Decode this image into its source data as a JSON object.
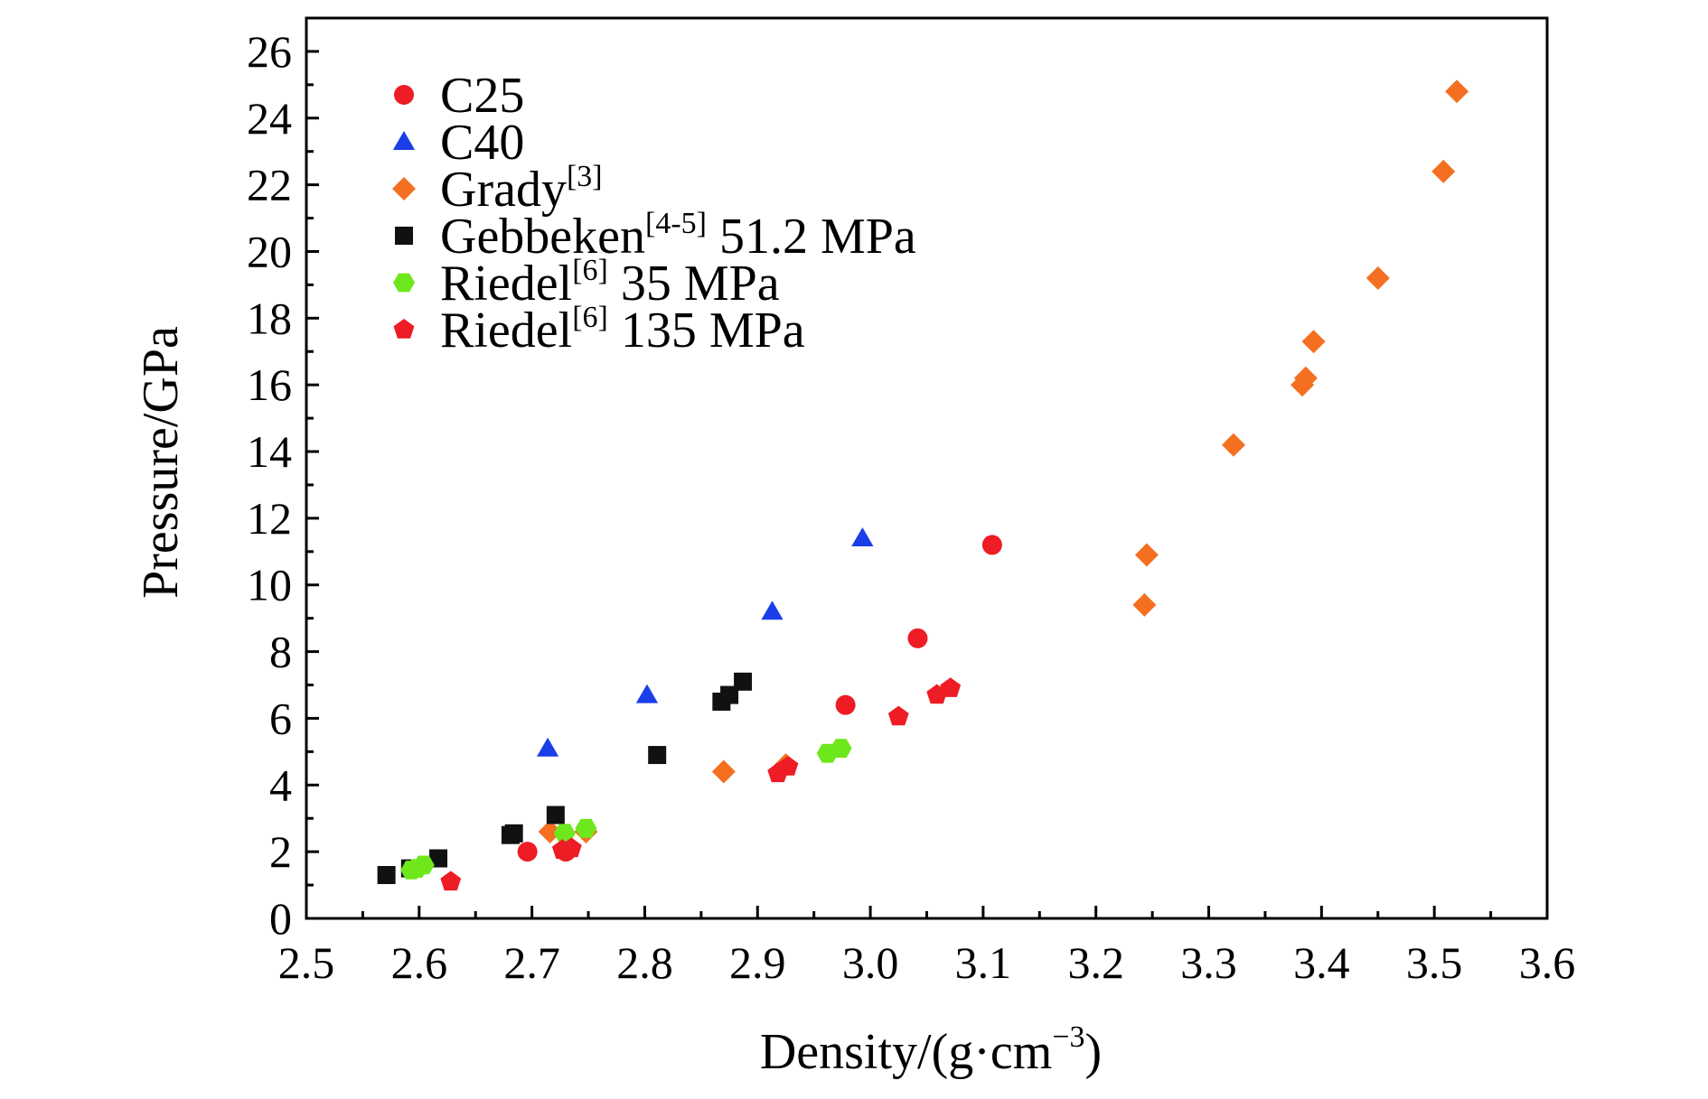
{
  "chart_data": {
    "type": "scatter",
    "title": "",
    "xlabel": "Density/(g·cm",
    "xlabel_sup": "−3",
    "xlabel_tail": ")",
    "ylabel": "Pressure/GPa",
    "xlim": [
      2.5,
      3.6
    ],
    "ylim": [
      0,
      27
    ],
    "xticks": [
      "2.5",
      "2.6",
      "2.7",
      "2.8",
      "2.9",
      "3.0",
      "3.1",
      "3.2",
      "3.3",
      "3.4",
      "3.5",
      "3.6"
    ],
    "yticks": [
      "0",
      "2",
      "4",
      "6",
      "8",
      "10",
      "12",
      "14",
      "16",
      "18",
      "20",
      "22",
      "24",
      "26"
    ],
    "grid": false,
    "legend_position": "top-left",
    "series": [
      {
        "name": "C25",
        "legend_main": "C25",
        "legend_sup": "",
        "legend_tail": "",
        "marker": "circle",
        "color": "#ee1c25",
        "points": [
          [
            2.696,
            2.0
          ],
          [
            2.73,
            2.0
          ],
          [
            2.978,
            6.4
          ],
          [
            3.042,
            8.4
          ],
          [
            3.108,
            11.2
          ]
        ]
      },
      {
        "name": "C40",
        "legend_main": "C40",
        "legend_sup": "",
        "legend_tail": "",
        "marker": "triangle",
        "color": "#1a3ee8",
        "points": [
          [
            2.714,
            5.1
          ],
          [
            2.802,
            6.7
          ],
          [
            2.913,
            9.2
          ],
          [
            2.993,
            11.4
          ]
        ]
      },
      {
        "name": "Grady[3]",
        "legend_main": "Grady",
        "legend_sup": "[3]",
        "legend_tail": "",
        "marker": "diamond",
        "color": "#f47020",
        "points": [
          [
            2.716,
            2.6
          ],
          [
            2.748,
            2.6
          ],
          [
            2.87,
            4.4
          ],
          [
            2.925,
            4.6
          ],
          [
            3.243,
            9.4
          ],
          [
            3.245,
            10.9
          ],
          [
            3.322,
            14.2
          ],
          [
            3.383,
            16.0
          ],
          [
            3.386,
            16.2
          ],
          [
            3.393,
            17.3
          ],
          [
            3.45,
            19.2
          ],
          [
            3.508,
            22.4
          ],
          [
            3.52,
            24.8
          ]
        ]
      },
      {
        "name": "Gebbeken[4-5] 51.2 MPa",
        "legend_main": "Gebbeken",
        "legend_sup": "[4-5]",
        "legend_tail": " 51.2 MPa",
        "marker": "square",
        "color": "#111111",
        "points": [
          [
            2.571,
            1.3
          ],
          [
            2.592,
            1.5
          ],
          [
            2.617,
            1.8
          ],
          [
            2.681,
            2.5
          ],
          [
            2.684,
            2.55
          ],
          [
            2.721,
            3.1
          ],
          [
            2.811,
            4.9
          ],
          [
            2.868,
            6.5
          ],
          [
            2.875,
            6.7
          ],
          [
            2.887,
            7.1
          ]
        ]
      },
      {
        "name": "Riedel[6] 35 MPa",
        "legend_main": "Riedel",
        "legend_sup": "[6]",
        "legend_tail": " 35 MPa",
        "marker": "hexagon",
        "color": "#6ee81c",
        "points": [
          [
            2.593,
            1.45
          ],
          [
            2.598,
            1.5
          ],
          [
            2.604,
            1.6
          ],
          [
            2.729,
            2.55
          ],
          [
            2.748,
            2.7
          ],
          [
            2.962,
            4.95
          ],
          [
            2.974,
            5.1
          ]
        ]
      },
      {
        "name": "Riedel[6] 135 MPa",
        "legend_main": "Riedel",
        "legend_sup": "[6]",
        "legend_tail": " 135 MPa",
        "marker": "pentagon",
        "color": "#ee1c25",
        "points": [
          [
            2.628,
            1.1
          ],
          [
            2.727,
            2.05
          ],
          [
            2.735,
            2.1
          ],
          [
            2.918,
            4.35
          ],
          [
            2.927,
            4.55
          ],
          [
            3.025,
            6.05
          ],
          [
            3.059,
            6.7
          ],
          [
            3.071,
            6.9
          ]
        ]
      }
    ]
  }
}
